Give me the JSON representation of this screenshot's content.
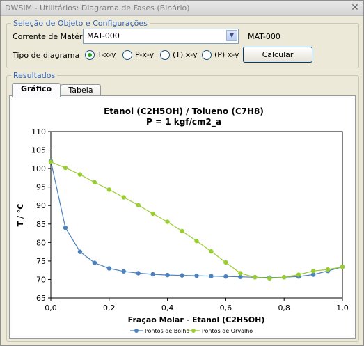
{
  "window": {
    "title": "DWSIM - Utilitários: Diagrama de Fases (Binário)"
  },
  "config": {
    "legend": "Seleção de Objeto e Configurações",
    "stream_label": "Corrente de Matéria",
    "stream_value": "MAT-000",
    "stream_echo": "MAT-000",
    "diagram_label": "Tipo de diagrama",
    "radios": [
      {
        "label": "T-x-y",
        "selected": true
      },
      {
        "label": "P-x-y",
        "selected": false
      },
      {
        "label": "(T) x-y",
        "selected": false
      },
      {
        "label": "(P) x-y",
        "selected": false
      }
    ],
    "calc_button": "Calcular"
  },
  "results": {
    "legend": "Resultados",
    "tabs": [
      {
        "label": "Gráfico",
        "active": true
      },
      {
        "label": "Tabela",
        "active": false
      }
    ]
  },
  "colors": {
    "bubble": "#4d82bd",
    "dew": "#9acd32",
    "accent": "#2f5fb7"
  },
  "icons": {
    "close": "close-icon",
    "dropdown": "chevron-down-icon"
  },
  "chart_data": {
    "type": "line",
    "title": "Etanol (C2H5OH) / Tolueno (C7H8)",
    "subtitle": "P = 1 kgf/cm2_a",
    "xlabel": "Fração Molar - Etanol (C2H5OH)",
    "ylabel": "T / °C",
    "xlim": [
      0,
      1
    ],
    "ylim": [
      65,
      110
    ],
    "xticks": [
      "0,0",
      "0,2",
      "0,4",
      "0,6",
      "0,8",
      "1,0"
    ],
    "yticks": [
      "65",
      "70",
      "75",
      "80",
      "85",
      "90",
      "95",
      "100",
      "105",
      "110"
    ],
    "grid": false,
    "legend_position": "bottom",
    "series": [
      {
        "name": "Pontos de Bolha",
        "x": [
          0.0,
          0.05,
          0.1,
          0.15,
          0.2,
          0.25,
          0.3,
          0.35,
          0.4,
          0.45,
          0.5,
          0.55,
          0.6,
          0.65,
          0.7,
          0.75,
          0.8,
          0.85,
          0.9,
          0.95,
          1.0
        ],
        "y": [
          102.0,
          84.0,
          77.5,
          74.5,
          73.0,
          72.2,
          71.7,
          71.4,
          71.2,
          71.1,
          71.0,
          70.9,
          70.8,
          70.7,
          70.6,
          70.5,
          70.6,
          70.8,
          71.3,
          72.3,
          73.4
        ]
      },
      {
        "name": "Pontos de Orvalho",
        "x": [
          0.0,
          0.05,
          0.1,
          0.15,
          0.2,
          0.25,
          0.3,
          0.35,
          0.4,
          0.45,
          0.5,
          0.55,
          0.6,
          0.65,
          0.7,
          0.75,
          0.8,
          0.85,
          0.9,
          0.95,
          1.0
        ],
        "y": [
          101.8,
          100.2,
          98.4,
          96.3,
          94.3,
          92.2,
          90.1,
          87.8,
          85.6,
          83.1,
          80.4,
          77.6,
          74.6,
          71.7,
          70.6,
          70.3,
          70.6,
          71.3,
          72.3,
          72.7,
          73.4
        ]
      }
    ]
  }
}
